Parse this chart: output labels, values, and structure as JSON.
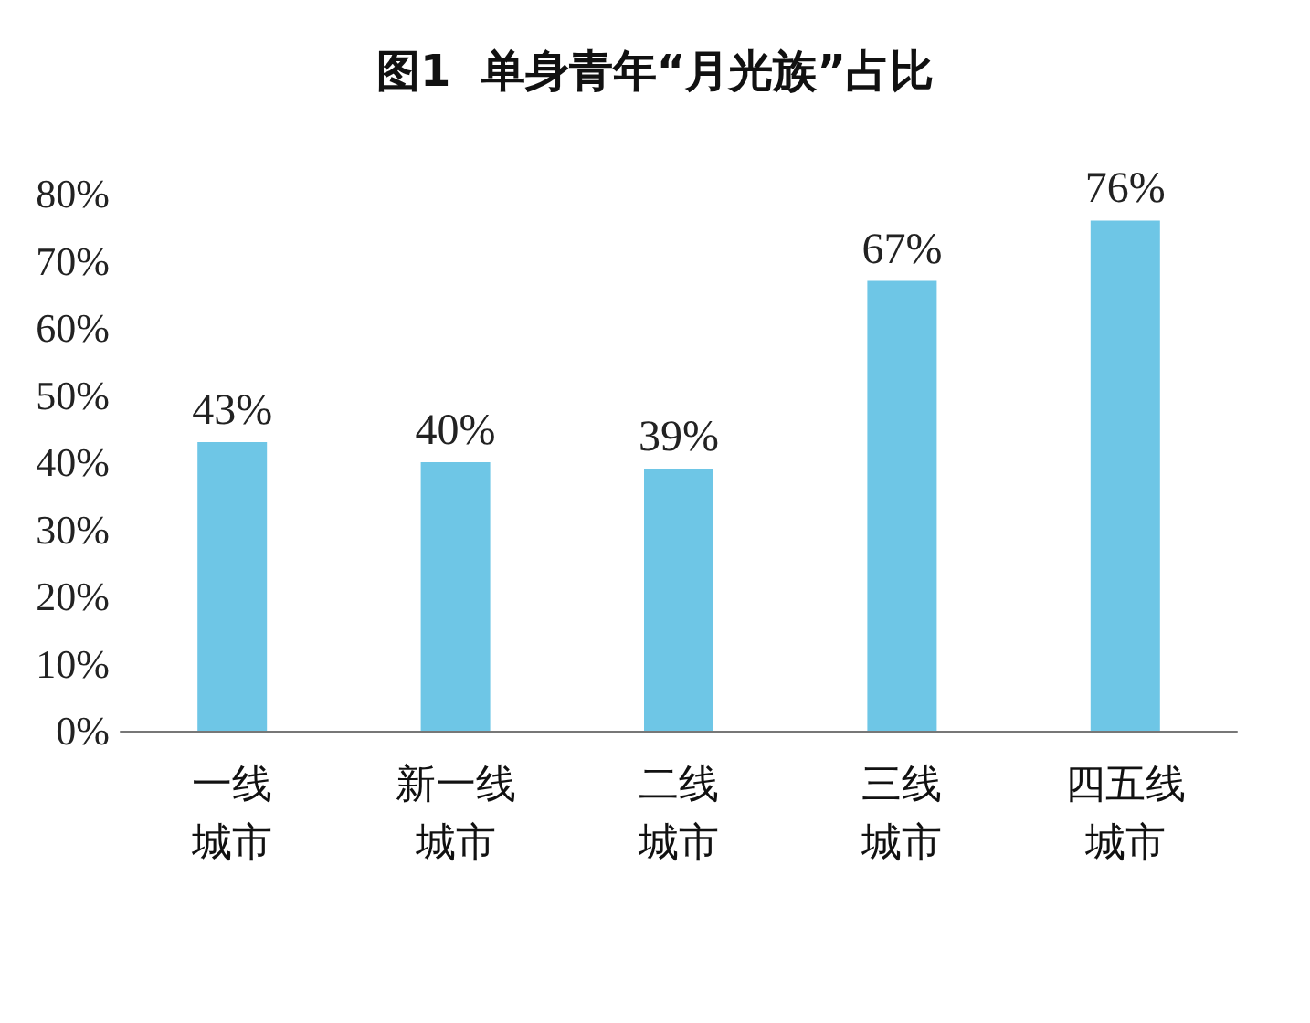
{
  "chart_data": {
    "type": "bar",
    "title": "图1  单身青年“月光族”占比",
    "categories": [
      "一线城市",
      "新一线城市",
      "二线城市",
      "三线城市",
      "四五线城市"
    ],
    "values": [
      43,
      40,
      39,
      67,
      76
    ],
    "value_labels": [
      "43%",
      "40%",
      "39%",
      "67%",
      "76%"
    ],
    "color": "#6ec6e6",
    "ylim": [
      0,
      80
    ],
    "yticks": [
      {
        "value": 0,
        "label": "0%"
      },
      {
        "value": 10,
        "label": "10%"
      },
      {
        "value": 20,
        "label": "20%"
      },
      {
        "value": 30,
        "label": "30%"
      },
      {
        "value": 40,
        "label": "40%"
      },
      {
        "value": 50,
        "label": "50%"
      },
      {
        "value": 60,
        "label": "60%"
      },
      {
        "value": 70,
        "label": "70%"
      },
      {
        "value": 80,
        "label": "80%"
      }
    ],
    "grid": false
  }
}
